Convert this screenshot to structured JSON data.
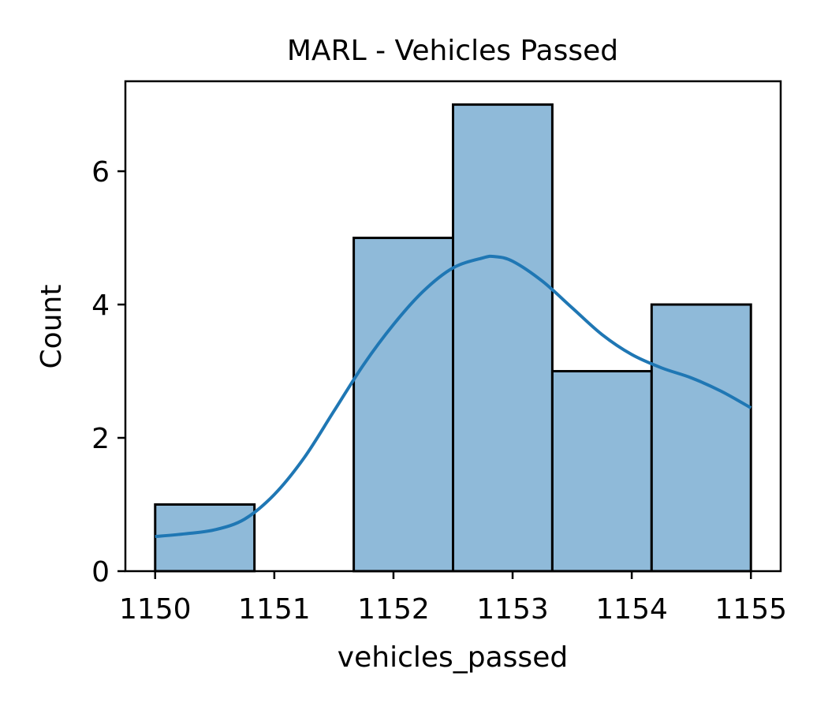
{
  "chart_data": {
    "type": "bar",
    "subtype": "histogram-with-kde",
    "title": "MARL - Vehicles Passed",
    "xlabel": "vehicles_passed",
    "ylabel": "Count",
    "xlim": [
      1149.75,
      1155.25
    ],
    "ylim": [
      0,
      7.35
    ],
    "x_ticks": [
      1150,
      1151,
      1152,
      1153,
      1154,
      1155
    ],
    "y_ticks": [
      0,
      2,
      4,
      6
    ],
    "bins": [
      {
        "start": 1150.0,
        "end": 1150.8333,
        "count": 1
      },
      {
        "start": 1150.8333,
        "end": 1151.6667,
        "count": 0
      },
      {
        "start": 1151.6667,
        "end": 1152.5,
        "count": 5
      },
      {
        "start": 1152.5,
        "end": 1153.3333,
        "count": 7
      },
      {
        "start": 1153.3333,
        "end": 1154.1667,
        "count": 3
      },
      {
        "start": 1154.1667,
        "end": 1155.0,
        "count": 4
      }
    ],
    "kde": {
      "x": [
        1150.0,
        1150.25,
        1150.5,
        1150.75,
        1151.0,
        1151.25,
        1151.5,
        1151.75,
        1152.0,
        1152.25,
        1152.5,
        1152.75,
        1152.85,
        1153.0,
        1153.25,
        1153.5,
        1153.75,
        1154.0,
        1154.25,
        1154.5,
        1154.75,
        1155.0
      ],
      "y": [
        0.52,
        0.56,
        0.62,
        0.78,
        1.15,
        1.7,
        2.4,
        3.1,
        3.7,
        4.2,
        4.55,
        4.7,
        4.72,
        4.65,
        4.35,
        3.95,
        3.55,
        3.25,
        3.05,
        2.9,
        2.7,
        2.45
      ]
    },
    "grid": false,
    "legend": "none",
    "colors": {
      "bar_fill": "#8fbad9",
      "bar_edge": "#000000",
      "kde_line": "#1f77b4"
    }
  }
}
